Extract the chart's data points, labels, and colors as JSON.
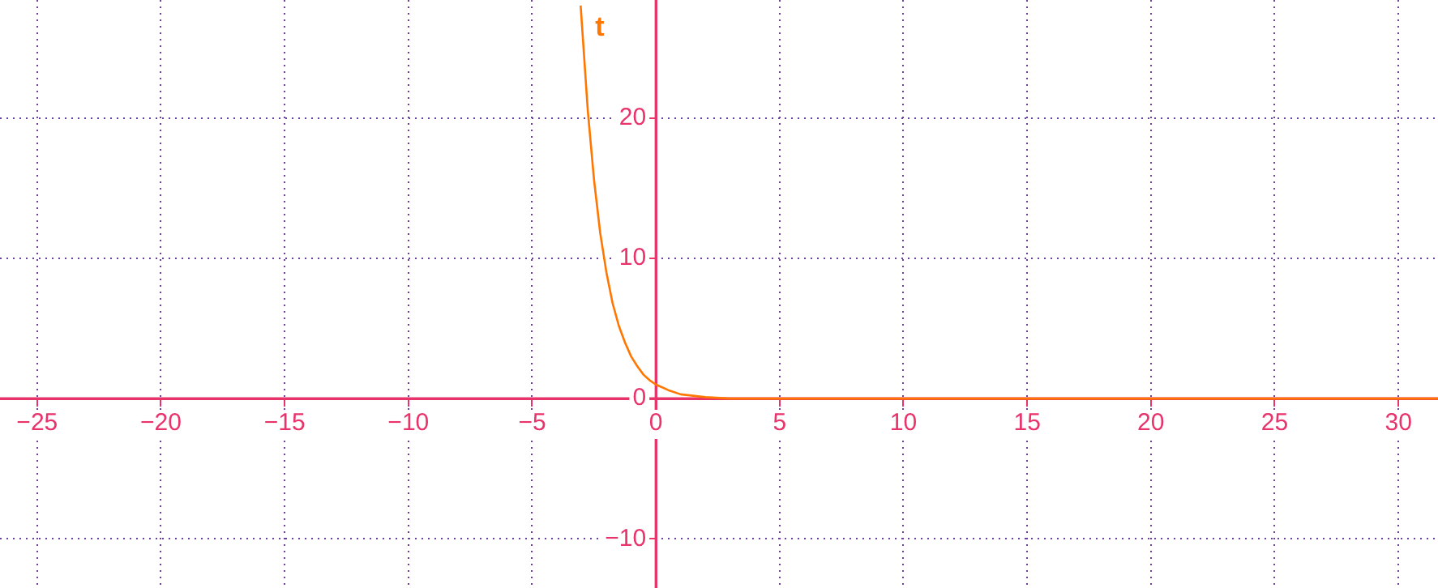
{
  "chart_data": {
    "type": "line",
    "x": [
      -3.04,
      -2.75,
      -2.5,
      -2.25,
      -2,
      -1.75,
      -1.5,
      -1.25,
      -1,
      -0.75,
      -0.5,
      -0.25,
      0,
      0.5,
      1,
      1.5,
      2,
      3,
      4,
      6,
      31.6
    ],
    "series": [
      {
        "name": "t",
        "color": "#ff7700",
        "values": [
          28,
          20.5,
          15.6,
          11.8,
          9,
          6.8,
          5.2,
          4,
          3,
          2.3,
          1.7,
          1.3,
          1,
          0.6,
          0.3,
          0.2,
          0.1,
          0,
          0,
          0,
          0
        ]
      }
    ],
    "xlim": [
      -26.5,
      31.6
    ],
    "ylim": [
      -13.5,
      28.4
    ],
    "xticks": [
      {
        "value": -25,
        "label": "−25"
      },
      {
        "value": -20,
        "label": "−20"
      },
      {
        "value": -15,
        "label": "−15"
      },
      {
        "value": -10,
        "label": "−10"
      },
      {
        "value": -5,
        "label": "−5"
      },
      0,
      5,
      10,
      15,
      20,
      25,
      30
    ],
    "yticks": [
      {
        "value": -10,
        "label": "−10"
      },
      0,
      10,
      20
    ],
    "grid": true,
    "legend": false,
    "marker": "none",
    "line_style": "solid"
  }
}
